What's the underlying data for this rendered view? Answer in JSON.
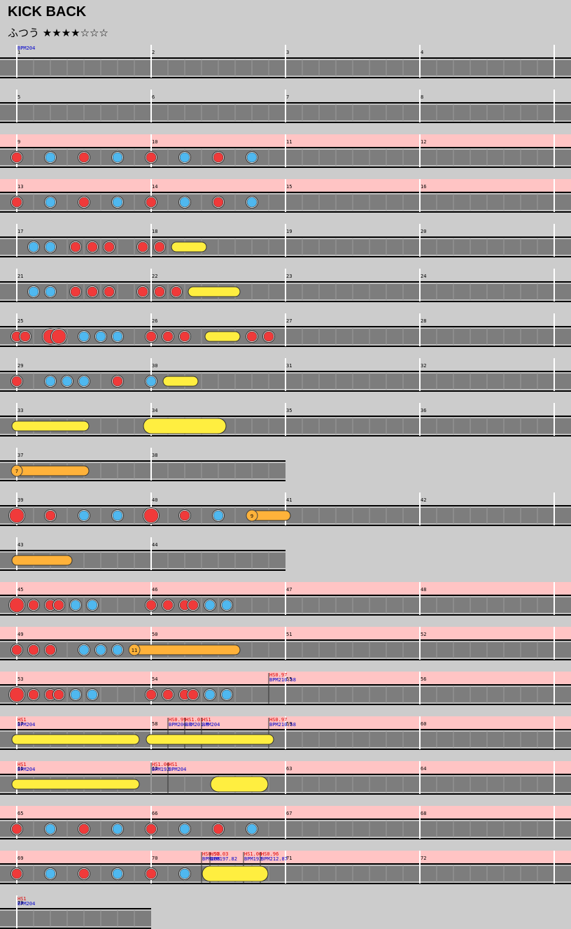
{
  "song": {
    "title": "KICK BACK",
    "difficulty_label": "ふつう",
    "stars_filled": 4,
    "stars_total": 7,
    "stars_text": "★★★★☆☆☆"
  },
  "colors": {
    "don": "#f03a3a",
    "ka": "#4fb8ef",
    "roll": "#ffee40",
    "balloon": "#ffb23a",
    "gogo": "#ffc4c4",
    "lane": "#7d7d7d",
    "bg": "#cccccc"
  },
  "icons": {
    "don": "red-don-note-icon",
    "ka": "blue-ka-note-icon",
    "roll": "yellow-drumroll-icon",
    "balloon": "orange-balloon-icon"
  },
  "rows": [
    {
      "measures": [
        1,
        2,
        3,
        4
      ],
      "gogo": false,
      "marks": [
        {
          "beat": 0,
          "lines": [
            {
              "t": "BPM204",
              "c": "blue"
            }
          ]
        }
      ],
      "notes": []
    },
    {
      "measures": [
        5,
        6,
        7,
        8
      ],
      "gogo": false,
      "notes": []
    },
    {
      "measures": [
        9,
        10,
        11,
        12
      ],
      "gogo": true,
      "notes": [
        [
          0,
          "d"
        ],
        [
          2,
          "k"
        ],
        [
          4,
          "d"
        ],
        [
          6,
          "k"
        ],
        [
          8,
          "d"
        ],
        [
          10,
          "k"
        ],
        [
          12,
          "d"
        ],
        [
          14,
          "k"
        ]
      ]
    },
    {
      "measures": [
        13,
        14,
        15,
        16
      ],
      "gogo": true,
      "notes": [
        [
          0,
          "d"
        ],
        [
          2,
          "k"
        ],
        [
          4,
          "d"
        ],
        [
          6,
          "k"
        ],
        [
          8,
          "d"
        ],
        [
          10,
          "k"
        ],
        [
          12,
          "d"
        ],
        [
          14,
          "k"
        ]
      ]
    },
    {
      "measures": [
        17,
        18,
        19,
        20
      ],
      "gogo": false,
      "notes": [
        [
          1,
          "k"
        ],
        [
          2,
          "k"
        ],
        [
          3.5,
          "d"
        ],
        [
          4.5,
          "d"
        ],
        [
          5.5,
          "d"
        ],
        [
          7.5,
          "d"
        ],
        [
          8.5,
          "d"
        ]
      ],
      "rolls": [
        [
          9.5,
          11,
          "r"
        ]
      ]
    },
    {
      "measures": [
        21,
        22,
        23,
        24
      ],
      "gogo": false,
      "notes": [
        [
          1,
          "k"
        ],
        [
          2,
          "k"
        ],
        [
          3.5,
          "d"
        ],
        [
          4.5,
          "d"
        ],
        [
          5.5,
          "d"
        ],
        [
          7.5,
          "d"
        ],
        [
          8.5,
          "d"
        ],
        [
          9.5,
          "d"
        ]
      ],
      "rolls": [
        [
          10.5,
          13,
          "r"
        ]
      ]
    },
    {
      "measures": [
        25,
        26,
        27,
        28
      ],
      "gogo": false,
      "notes": [
        [
          0,
          "d"
        ],
        [
          0.5,
          "d"
        ],
        [
          2,
          "D"
        ],
        [
          2.5,
          "D"
        ],
        [
          4,
          "k"
        ],
        [
          5,
          "k"
        ],
        [
          6,
          "k"
        ],
        [
          8,
          "d"
        ],
        [
          9,
          "d"
        ],
        [
          10,
          "d"
        ],
        [
          14,
          "d"
        ],
        [
          15,
          "d"
        ]
      ],
      "rolls": [
        [
          11.5,
          13,
          "r"
        ]
      ]
    },
    {
      "measures": [
        29,
        30,
        31,
        32
      ],
      "gogo": false,
      "notes": [
        [
          0,
          "d"
        ],
        [
          2,
          "k"
        ],
        [
          3,
          "k"
        ],
        [
          4,
          "k"
        ],
        [
          6,
          "d"
        ],
        [
          8,
          "k"
        ]
      ],
      "rolls": [
        [
          9,
          10.5,
          "r"
        ]
      ]
    },
    {
      "measures": [
        33,
        34,
        35,
        36
      ],
      "gogo": false,
      "notes": [],
      "rolls": [
        [
          0,
          4,
          "r"
        ],
        [
          8,
          12,
          "R"
        ]
      ]
    },
    {
      "measures": [
        37,
        38
      ],
      "gogo": false,
      "notes": [],
      "rolls": [
        [
          0,
          4,
          "b",
          "7"
        ]
      ]
    },
    {
      "measures": [
        39,
        40,
        41,
        42
      ],
      "gogo": false,
      "notes": [
        [
          0,
          "D"
        ],
        [
          2,
          "d"
        ],
        [
          4,
          "k"
        ],
        [
          6,
          "k"
        ],
        [
          8,
          "D"
        ],
        [
          10,
          "d"
        ],
        [
          12,
          "k"
        ]
      ],
      "rolls": [
        [
          14,
          16,
          "b",
          "9"
        ]
      ]
    },
    {
      "measures": [
        43,
        44
      ],
      "gogo": false,
      "notes": [],
      "rolls": [
        [
          0,
          3,
          "b",
          ""
        ]
      ]
    },
    {
      "measures": [
        45,
        46,
        47,
        48
      ],
      "gogo": true,
      "notes": [
        [
          0,
          "D"
        ],
        [
          1,
          "d"
        ],
        [
          2,
          "d"
        ],
        [
          2.5,
          "d"
        ],
        [
          3.5,
          "k"
        ],
        [
          4.5,
          "k"
        ],
        [
          8,
          "d"
        ],
        [
          9,
          "d"
        ],
        [
          10,
          "d"
        ],
        [
          10.5,
          "d"
        ],
        [
          11.5,
          "k"
        ],
        [
          12.5,
          "k"
        ]
      ]
    },
    {
      "measures": [
        49,
        50,
        51,
        52
      ],
      "gogo": true,
      "notes": [
        [
          0,
          "d"
        ],
        [
          1,
          "d"
        ],
        [
          2,
          "d"
        ],
        [
          4,
          "k"
        ],
        [
          5,
          "k"
        ],
        [
          6,
          "k"
        ]
      ],
      "rolls": [
        [
          7,
          13,
          "b",
          "11"
        ]
      ]
    },
    {
      "measures": [
        53,
        54,
        55,
        56
      ],
      "gogo": true,
      "marks": [
        {
          "beat": 15,
          "lines": [
            {
              "t": "HS0.97",
              "c": "red"
            },
            {
              "t": "BPM210.58",
              "c": "blue"
            }
          ]
        }
      ],
      "notes": [
        [
          0,
          "D"
        ],
        [
          1,
          "d"
        ],
        [
          2,
          "d"
        ],
        [
          2.5,
          "d"
        ],
        [
          3.5,
          "k"
        ],
        [
          4.5,
          "k"
        ],
        [
          8,
          "d"
        ],
        [
          9,
          "d"
        ],
        [
          10,
          "d"
        ],
        [
          10.5,
          "d"
        ],
        [
          11.5,
          "k"
        ],
        [
          12.5,
          "k"
        ]
      ]
    },
    {
      "measures": [
        57,
        58,
        59,
        60
      ],
      "gogo": true,
      "marks": [
        {
          "beat": 0,
          "lines": [
            {
              "t": "HS1",
              "c": "red"
            },
            {
              "t": "BPM204",
              "c": "blue"
            }
          ]
        },
        {
          "beat": 9,
          "lines": [
            {
              "t": "HS0.99",
              "c": "red"
            },
            {
              "t": "BPM206.1",
              "c": "blue"
            }
          ]
        },
        {
          "beat": 10,
          "lines": [
            {
              "t": "HS1.01",
              "c": "red"
            },
            {
              "t": "BPM201.9",
              "c": "blue"
            }
          ]
        },
        {
          "beat": 11,
          "lines": [
            {
              "t": "HS1",
              "c": "red"
            },
            {
              "t": "BPM204",
              "c": "blue"
            }
          ]
        },
        {
          "beat": 15,
          "lines": [
            {
              "t": "HS0.97",
              "c": "red"
            },
            {
              "t": "BPM210.58",
              "c": "blue"
            }
          ]
        }
      ],
      "notes": [],
      "rolls": [
        [
          0,
          7,
          "r"
        ],
        [
          8,
          15,
          "r"
        ]
      ]
    },
    {
      "measures": [
        61,
        62,
        63,
        64
      ],
      "gogo": true,
      "marks": [
        {
          "beat": 0,
          "lines": [
            {
              "t": "HS1",
              "c": "red"
            },
            {
              "t": "BPM204",
              "c": "blue"
            }
          ]
        },
        {
          "beat": 8,
          "lines": [
            {
              "t": "HS1.06",
              "c": "red"
            },
            {
              "t": "BPM192",
              "c": "blue"
            }
          ]
        },
        {
          "beat": 9,
          "lines": [
            {
              "t": "HS1",
              "c": "red"
            },
            {
              "t": "BPM204",
              "c": "blue"
            }
          ]
        }
      ],
      "notes": [],
      "rolls": [
        [
          0,
          7,
          "r"
        ],
        [
          12,
          14.5,
          "R"
        ]
      ]
    },
    {
      "measures": [
        65,
        66,
        67,
        68
      ],
      "gogo": true,
      "notes": [
        [
          0,
          "d"
        ],
        [
          2,
          "k"
        ],
        [
          4,
          "d"
        ],
        [
          6,
          "k"
        ],
        [
          8,
          "d"
        ],
        [
          10,
          "k"
        ],
        [
          12,
          "d"
        ],
        [
          14,
          "k"
        ]
      ]
    },
    {
      "measures": [
        69,
        70,
        71,
        72
      ],
      "gogo": true,
      "marks": [
        {
          "beat": 11,
          "lines": [
            {
              "t": "HS0.98",
              "c": "red"
            },
            {
              "t": "BPM208",
              "c": "blue"
            }
          ]
        },
        {
          "beat": 11.5,
          "lines": [
            {
              "t": "HS1.03",
              "c": "red"
            },
            {
              "t": "BPM197.82",
              "c": "blue"
            }
          ]
        },
        {
          "beat": 13.5,
          "lines": [
            {
              "t": "HS1.06",
              "c": "red"
            },
            {
              "t": "BPM192",
              "c": "blue"
            }
          ]
        },
        {
          "beat": 14.5,
          "lines": [
            {
              "t": "HS0.96",
              "c": "red"
            },
            {
              "t": "BPM212.87",
              "c": "blue"
            }
          ]
        }
      ],
      "notes": [
        [
          0,
          "d"
        ],
        [
          2,
          "k"
        ],
        [
          4,
          "d"
        ],
        [
          6,
          "k"
        ],
        [
          8,
          "d"
        ],
        [
          10,
          "k"
        ]
      ],
      "rolls": [
        [
          11.5,
          14.5,
          "R"
        ]
      ]
    },
    {
      "measures": [
        73
      ],
      "gogo": false,
      "marks": [
        {
          "beat": 0,
          "lines": [
            {
              "t": "HS1",
              "c": "red"
            },
            {
              "t": "BPM204",
              "c": "blue"
            }
          ]
        }
      ],
      "notes": []
    }
  ]
}
